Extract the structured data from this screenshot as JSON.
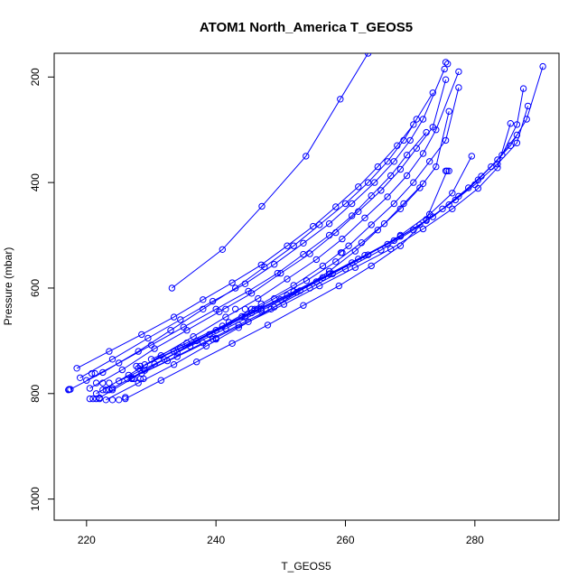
{
  "chart_data": {
    "type": "line",
    "title": "ATOM1 North_America T_GEOS5",
    "xlabel": "T_GEOS5",
    "ylabel": "Pressure (mbar)",
    "xlim": [
      215,
      293
    ],
    "ylim": [
      1040,
      155
    ],
    "y_reversed": true,
    "xticks": [
      220,
      240,
      260,
      280
    ],
    "yticks": [
      200,
      400,
      600,
      800,
      1000
    ],
    "color": "#0000FF",
    "marker": "open-circle",
    "series": [
      {
        "x": [
          233.2,
          241.0,
          247.1,
          253.9,
          259.2,
          263.5
        ],
        "y": [
          600,
          527,
          445,
          350,
          242,
          155
        ]
      },
      {
        "x": [
          217.5,
          222.5,
          228,
          233,
          238,
          243,
          247.5,
          252,
          256,
          260,
          263.5,
          266.5,
          269,
          271,
          273.5
        ],
        "y": [
          792,
          760,
          720,
          680,
          640,
          600,
          560,
          520,
          480,
          440,
          400,
          360,
          320,
          280,
          230
        ]
      },
      {
        "x": [
          219,
          224,
          229.5,
          234.5,
          239.5,
          244.5,
          249,
          253.5,
          257.5,
          261,
          264.5,
          267.5,
          270,
          272,
          275.3
        ],
        "y": [
          770,
          735,
          695,
          660,
          625,
          592,
          555,
          515,
          478,
          440,
          400,
          360,
          320,
          280,
          185
        ]
      },
      {
        "x": [
          220.5,
          225.5,
          230.5,
          235.5,
          240.5,
          245.5,
          250,
          254.5,
          258.5,
          262,
          265.5,
          268.5,
          271,
          273.5,
          275.5
        ],
        "y": [
          790,
          755,
          715,
          680,
          645,
          610,
          572,
          535,
          495,
          455,
          415,
          375,
          335,
          295,
          205
        ]
      },
      {
        "x": [
          221.5,
          226.5,
          231.5,
          236.5,
          241.5,
          246.5,
          251,
          255.5,
          259.5,
          263,
          266.5,
          269.5,
          272,
          274,
          277.5
        ],
        "y": [
          800,
          765,
          728,
          692,
          655,
          620,
          583,
          546,
          507,
          467,
          427,
          387,
          345,
          300,
          190
        ]
      },
      {
        "x": [
          222,
          227,
          232,
          237,
          242,
          247,
          252,
          256.5,
          260.5,
          264,
          267.5,
          270.5,
          273,
          275.5,
          277.5
        ],
        "y": [
          808,
          772,
          735,
          700,
          665,
          630,
          595,
          558,
          520,
          480,
          440,
          400,
          360,
          320,
          220
        ]
      },
      {
        "x": [
          223,
          228,
          233.5,
          238.5,
          243.5,
          248.5,
          253,
          257.5,
          261.5,
          265,
          268.5,
          271.5,
          274,
          276
        ],
        "y": [
          812,
          780,
          745,
          710,
          675,
          640,
          605,
          568,
          530,
          490,
          450,
          410,
          370,
          265
        ]
      },
      {
        "x": [
          218.5,
          223.5,
          228.5,
          233.5,
          238,
          242.5,
          247,
          251,
          255,
          258.5,
          262,
          265,
          268,
          270.5
        ],
        "y": [
          752,
          720,
          688,
          655,
          622,
          590,
          556,
          520,
          483,
          446,
          408,
          370,
          330,
          290
        ]
      },
      {
        "x": [
          220,
          225,
          230,
          235,
          240,
          245,
          249.5,
          253.5,
          257.5,
          261,
          264,
          267,
          269.5,
          272.5
        ],
        "y": [
          775,
          742,
          708,
          674,
          640,
          606,
          572,
          536,
          500,
          463,
          425,
          387,
          348,
          305
        ]
      },
      {
        "x": [
          224,
          229,
          234,
          239,
          244,
          249,
          254,
          258.5,
          262.5,
          266,
          269,
          272
        ],
        "y": [
          790,
          756,
          722,
          688,
          654,
          620,
          586,
          550,
          514,
          478,
          440,
          402
        ]
      },
      {
        "x": [
          226,
          231.5,
          237,
          242.5,
          248,
          253.5,
          259,
          264,
          268.5,
          272.5,
          275.7
        ],
        "y": [
          810,
          775,
          740,
          705,
          670,
          633,
          596,
          558,
          520,
          470,
          378
        ]
      },
      {
        "x": [
          227,
          232.5,
          238,
          243.5,
          249,
          254.5,
          260,
          265.5,
          270.5,
          275,
          279,
          282.5,
          285.5,
          288,
          290.5
        ],
        "y": [
          770,
          738,
          704,
          670,
          636,
          600,
          564,
          528,
          490,
          450,
          410,
          370,
          330,
          280,
          180
        ]
      },
      {
        "x": [
          228,
          233.5,
          239,
          244.5,
          250,
          255.5,
          261,
          266.5,
          271.5,
          276,
          280,
          283.5,
          286.5,
          288.2
        ],
        "y": [
          752,
          720,
          688,
          655,
          622,
          588,
          552,
          517,
          480,
          442,
          404,
          365,
          325,
          255
        ]
      },
      {
        "x": [
          229,
          234.5,
          240,
          245.5,
          251,
          256.5,
          262,
          267.5,
          272.5,
          277,
          280.5,
          283.5,
          286.5
        ],
        "y": [
          745,
          713,
          680,
          647,
          614,
          580,
          545,
          510,
          472,
          433,
          395,
          357,
          310
        ]
      },
      {
        "x": [
          230,
          235.5,
          241,
          246.5,
          252,
          257.5,
          263,
          268.5,
          273.5,
          277.5,
          281,
          284.2,
          286.5,
          287.5
        ],
        "y": [
          735,
          704,
          672,
          640,
          607,
          573,
          538,
          502,
          465,
          426,
          388,
          348,
          290,
          222
        ]
      },
      {
        "x": [
          228.5,
          234,
          239.5,
          245,
          250.5,
          256,
          261.5,
          267,
          272,
          276.5,
          280.5,
          283.5,
          285.5
        ],
        "y": [
          762,
          730,
          697,
          664,
          631,
          596,
          561,
          526,
          488,
          450,
          411,
          372,
          288
        ]
      },
      {
        "x": [
          225,
          230.5,
          236,
          241.5,
          247,
          252.5,
          258,
          263.5,
          268.5,
          273,
          276.5,
          279.5
        ],
        "y": [
          776,
          744,
          710,
          677,
          643,
          608,
          573,
          537,
          500,
          460,
          420,
          350
        ]
      }
    ],
    "scatter_extra": [
      {
        "x": 217.2,
        "y": 793
      },
      {
        "x": 217.3,
        "y": 792
      },
      {
        "x": 220.5,
        "y": 810
      },
      {
        "x": 221,
        "y": 810
      },
      {
        "x": 221.5,
        "y": 810
      },
      {
        "x": 222,
        "y": 810
      },
      {
        "x": 220.8,
        "y": 762
      },
      {
        "x": 221.3,
        "y": 762
      },
      {
        "x": 222.5,
        "y": 793
      },
      {
        "x": 223,
        "y": 793
      },
      {
        "x": 223.5,
        "y": 793
      },
      {
        "x": 224,
        "y": 793
      },
      {
        "x": 221.5,
        "y": 780
      },
      {
        "x": 222.5,
        "y": 780
      },
      {
        "x": 223.5,
        "y": 780
      },
      {
        "x": 224,
        "y": 812
      },
      {
        "x": 225,
        "y": 812
      },
      {
        "x": 226,
        "y": 807
      },
      {
        "x": 226.3,
        "y": 772
      },
      {
        "x": 227.3,
        "y": 772
      },
      {
        "x": 228.3,
        "y": 772
      },
      {
        "x": 228.8,
        "y": 772
      },
      {
        "x": 227.7,
        "y": 748
      },
      {
        "x": 228.3,
        "y": 748
      },
      {
        "x": 245.5,
        "y": 640
      },
      {
        "x": 246,
        "y": 640
      },
      {
        "x": 246.5,
        "y": 640
      },
      {
        "x": 247,
        "y": 640
      },
      {
        "x": 244.5,
        "y": 640
      },
      {
        "x": 243,
        "y": 640
      },
      {
        "x": 241.5,
        "y": 640
      },
      {
        "x": 240,
        "y": 697
      },
      {
        "x": 240,
        "y": 695
      },
      {
        "x": 259.3,
        "y": 533
      },
      {
        "x": 259.5,
        "y": 533
      },
      {
        "x": 275.5,
        "y": 378
      },
      {
        "x": 276,
        "y": 378
      },
      {
        "x": 275.5,
        "y": 172
      },
      {
        "x": 275.8,
        "y": 175
      }
    ]
  }
}
